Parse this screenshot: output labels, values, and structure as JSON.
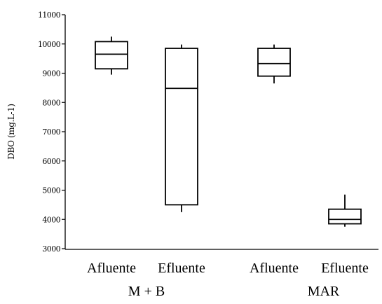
{
  "chart_data": {
    "type": "box",
    "title": "",
    "xlabel": "",
    "ylabel": "DBO (mg.L-1)",
    "ylim": [
      3000,
      11000
    ],
    "yticks": [
      3000,
      4000,
      5000,
      6000,
      7000,
      8000,
      9000,
      10000,
      11000
    ],
    "ytick_labels": [
      "3000",
      "4000",
      "5000",
      "6000",
      "7000",
      "8000",
      "9000",
      "10000",
      "11000"
    ],
    "grid": false,
    "groups": [
      {
        "label": "M + B",
        "boxes": [
          {
            "category": "Afluente",
            "min": 8950,
            "q1": 9150,
            "median": 9650,
            "q3": 10080,
            "max": 10250
          },
          {
            "category": "Efluente",
            "min": 4250,
            "q1": 4500,
            "median": 8480,
            "q3": 9850,
            "max": 9980
          }
        ]
      },
      {
        "label": "MAR",
        "boxes": [
          {
            "category": "Afluente",
            "min": 8650,
            "q1": 8900,
            "median": 9330,
            "q3": 9850,
            "max": 9980
          },
          {
            "category": "Efluente",
            "min": 3750,
            "q1": 3850,
            "median": 4000,
            "q3": 4350,
            "max": 4850
          }
        ]
      }
    ]
  }
}
